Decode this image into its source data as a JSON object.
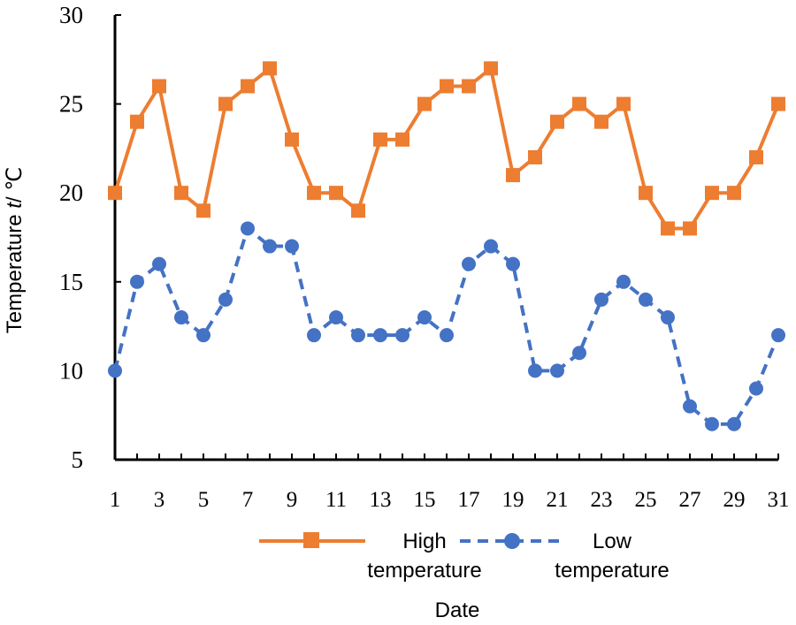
{
  "chart_data": {
    "type": "line",
    "title": "",
    "xlabel": "Date",
    "ylabel_prefix": "Temperature ",
    "ylabel_var": "t",
    "ylabel_suffix": "/ ℃",
    "ylim": [
      5,
      30
    ],
    "yticks": [
      5,
      10,
      15,
      20,
      25,
      30
    ],
    "x": [
      1,
      2,
      3,
      4,
      5,
      6,
      7,
      8,
      9,
      10,
      11,
      12,
      13,
      14,
      15,
      16,
      17,
      18,
      19,
      20,
      21,
      22,
      23,
      24,
      25,
      26,
      27,
      28,
      29,
      30,
      31
    ],
    "xtick_labels": [
      "1",
      "3",
      "5",
      "7",
      "9",
      "11",
      "13",
      "15",
      "17",
      "19",
      "21",
      "23",
      "25",
      "27",
      "29",
      "31"
    ],
    "grid": false,
    "legend_position": "bottom",
    "series": [
      {
        "name": "High temperature",
        "legend_line1": "High",
        "legend_line2": "temperature",
        "color": "#ED7D31",
        "marker": "square",
        "line_style": "solid",
        "values": [
          20,
          24,
          26,
          20,
          19,
          25,
          26,
          27,
          23,
          20,
          20,
          19,
          23,
          23,
          25,
          26,
          26,
          27,
          21,
          22,
          24,
          25,
          24,
          25,
          20,
          18,
          18,
          20,
          20,
          22,
          25
        ]
      },
      {
        "name": "Low temperature",
        "legend_line1": "Low",
        "legend_line2": "temperature",
        "color": "#4472C4",
        "marker": "circle",
        "line_style": "dashed",
        "values": [
          10,
          15,
          16,
          13,
          12,
          14,
          18,
          17,
          17,
          12,
          13,
          12,
          12,
          12,
          13,
          12,
          16,
          17,
          16,
          10,
          10,
          11,
          14,
          15,
          14,
          13,
          8,
          7,
          7,
          9,
          12
        ]
      }
    ]
  }
}
